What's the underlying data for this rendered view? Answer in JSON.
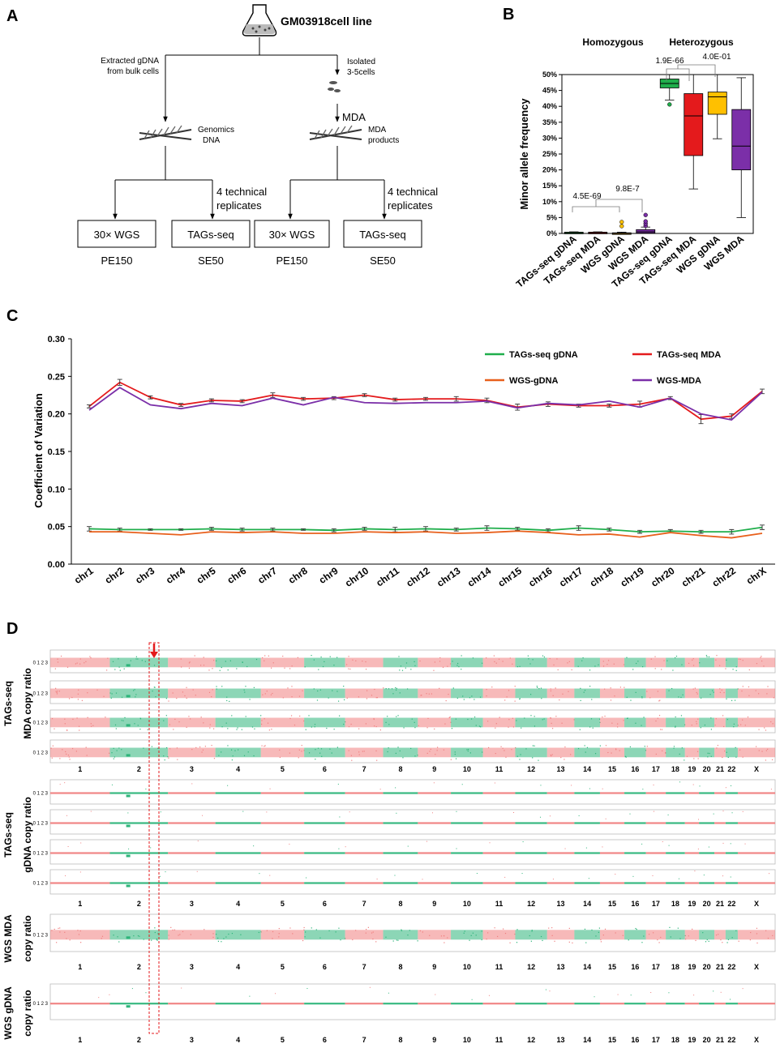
{
  "panel_letters": {
    "a": "A",
    "b": "B",
    "c": "C",
    "d": "D"
  },
  "panel_a": {
    "cell_line": "GM03918cell line",
    "left_branch": [
      "Extracted gDNA",
      "from bulk cells"
    ],
    "right_branch": [
      "Isolated",
      "3-5cells"
    ],
    "mda_label": "MDA",
    "genomics_dna": [
      "Genomics",
      "DNA"
    ],
    "mda_products": [
      "MDA",
      "products"
    ],
    "replicates": [
      "4 technical",
      "replicates"
    ],
    "boxes": [
      "30× WGS",
      "TAGs-seq",
      "30× WGS",
      "TAGs-seq"
    ],
    "reads": [
      "PE150",
      "SE50",
      "PE150",
      "SE50"
    ]
  },
  "colors": {
    "green": "#1fae4b",
    "red": "#e41a1c",
    "orange": "#e8601c",
    "purple": "#7b2fa8",
    "yellow": "#ffc000",
    "cnv_green": "#2db57a",
    "cnv_red": "#f08080"
  },
  "chart_data": [
    {
      "type": "box",
      "ylabel": "Minor allele frequency",
      "ylim": [
        0,
        50
      ],
      "yticks": [
        "0%",
        "5%",
        "10%",
        "15%",
        "20%",
        "25%",
        "30%",
        "35%",
        "40%",
        "45%",
        "50%"
      ],
      "group_labels": [
        "Homozygous",
        "Heterozygous"
      ],
      "categories": [
        "TAGs-seq gDNA",
        "TAGs-seq MDA",
        "WGS gDNA",
        "WGS MDA",
        "TAGs-seq gDNA",
        "TAGs-seq MDA",
        "WGS gDNA",
        "WGS MDA"
      ],
      "boxes": [
        {
          "color": "#1fae4b",
          "min": 0,
          "q1": 0,
          "median": 0.2,
          "q3": 0.4,
          "max": 0.5,
          "outliers": []
        },
        {
          "color": "#e41a1c",
          "min": 0,
          "q1": 0,
          "median": 0.2,
          "q3": 0.4,
          "max": 0.5,
          "outliers": []
        },
        {
          "color": "#ffc000",
          "min": 0,
          "q1": 0,
          "median": 0,
          "q3": 0.2,
          "max": 0.4,
          "outliers": [
            2.3,
            3.6
          ]
        },
        {
          "color": "#7b2fa8",
          "min": 0,
          "q1": 0.1,
          "median": 0.5,
          "q3": 1.2,
          "max": 2,
          "outliers": [
            2.4,
            3.1,
            3.8,
            5.8
          ]
        },
        {
          "color": "#1fae4b",
          "min": 42,
          "q1": 45.8,
          "median": 47.2,
          "q3": 48.6,
          "max": 50,
          "outliers": [
            40.6
          ]
        },
        {
          "color": "#e41a1c",
          "min": 14,
          "q1": 24.5,
          "median": 37,
          "q3": 44,
          "max": 50,
          "outliers": []
        },
        {
          "color": "#ffc000",
          "min": 29.8,
          "q1": 37.5,
          "median": 43,
          "q3": 44.5,
          "max": 50,
          "outliers": []
        },
        {
          "color": "#7b2fa8",
          "min": 5,
          "q1": 20,
          "median": 27.5,
          "q3": 39,
          "max": 49,
          "outliers": []
        }
      ],
      "pvalues": [
        "4.5E-69",
        "9.8E-7",
        "1.9E-66",
        "4.0E-01"
      ]
    },
    {
      "type": "line",
      "ylabel": "Coefficient of Variation",
      "ylim": [
        0,
        0.3
      ],
      "yticks": [
        "0.00",
        "0.05",
        "0.10",
        "0.15",
        "0.20",
        "0.25",
        "0.30"
      ],
      "categories": [
        "chr1",
        "chr2",
        "chr3",
        "chr4",
        "chr5",
        "chr6",
        "chr7",
        "chr8",
        "chr9",
        "chr10",
        "chr11",
        "chr12",
        "chr13",
        "chr14",
        "chr15",
        "chr16",
        "chr17",
        "chr18",
        "chr19",
        "chr20",
        "chr21",
        "chr22",
        "chrX"
      ],
      "series": [
        {
          "name": "TAGs-seq gDNA",
          "color": "#1fae4b",
          "values": [
            0.047,
            0.046,
            0.046,
            0.046,
            0.047,
            0.046,
            0.046,
            0.046,
            0.045,
            0.047,
            0.046,
            0.047,
            0.046,
            0.048,
            0.047,
            0.045,
            0.048,
            0.046,
            0.043,
            0.044,
            0.043,
            0.043,
            0.049
          ],
          "errors": [
            0.003,
            0.002,
            0.001,
            0.001,
            0.002,
            0.002,
            0.002,
            0.001,
            0.002,
            0.002,
            0.003,
            0.003,
            0.002,
            0.003,
            0.002,
            0.002,
            0.003,
            0.002,
            0.002,
            0.002,
            0.002,
            0.003,
            0.003
          ]
        },
        {
          "name": "TAGs-seq MDA",
          "color": "#e41a1c",
          "values": [
            0.21,
            0.242,
            0.222,
            0.212,
            0.218,
            0.217,
            0.225,
            0.22,
            0.221,
            0.225,
            0.219,
            0.22,
            0.22,
            0.218,
            0.209,
            0.213,
            0.211,
            0.211,
            0.213,
            0.221,
            0.193,
            0.197,
            0.23
          ],
          "errors": [
            0.002,
            0.004,
            0.002,
            0.002,
            0.002,
            0.002,
            0.003,
            0.002,
            0.002,
            0.002,
            0.002,
            0.002,
            0.003,
            0.003,
            0.004,
            0.003,
            0.002,
            0.002,
            0.004,
            0.002,
            0.006,
            0.003,
            0.003
          ]
        },
        {
          "name": "WGS-gDNA",
          "color": "#e8601c",
          "values": [
            0.043,
            0.043,
            0.041,
            0.039,
            0.043,
            0.042,
            0.043,
            0.041,
            0.041,
            0.043,
            0.042,
            0.043,
            0.041,
            0.042,
            0.044,
            0.042,
            0.039,
            0.04,
            0.036,
            0.042,
            0.038,
            0.035,
            0.041
          ],
          "errors": []
        },
        {
          "name": "WGS-MDA",
          "color": "#7b2fa8",
          "values": [
            0.205,
            0.235,
            0.212,
            0.207,
            0.214,
            0.211,
            0.221,
            0.212,
            0.222,
            0.215,
            0.214,
            0.215,
            0.215,
            0.217,
            0.208,
            0.214,
            0.212,
            0.217,
            0.209,
            0.221,
            0.2,
            0.192,
            0.229
          ],
          "errors": []
        }
      ],
      "legend_position": "top-right"
    },
    {
      "type": "scatter",
      "description_labels": {
        "tags_mda": [
          "TAGs-seq",
          "MDA copy ratio"
        ],
        "tags_gdna": [
          "TAGs-seq",
          "gDNA copy ratio"
        ],
        "wgs_mda": [
          "WGS MDA",
          "copy ratio"
        ],
        "wgs_gdna": [
          "WGS gDNA",
          "copy ratio"
        ]
      },
      "ytick_text": "0 1 2 3",
      "chromosomes": [
        "1",
        "2",
        "3",
        "4",
        "5",
        "6",
        "7",
        "8",
        "9",
        "10",
        "11",
        "12",
        "13",
        "14",
        "15",
        "16",
        "17",
        "18",
        "19",
        "20",
        "21",
        "22",
        "X"
      ],
      "chromosome_lengths_mb": [
        249,
        243,
        198,
        190,
        181,
        171,
        159,
        145,
        138,
        134,
        135,
        133,
        114,
        107,
        102,
        90,
        83,
        80,
        59,
        64,
        47,
        51,
        156
      ]
    }
  ]
}
